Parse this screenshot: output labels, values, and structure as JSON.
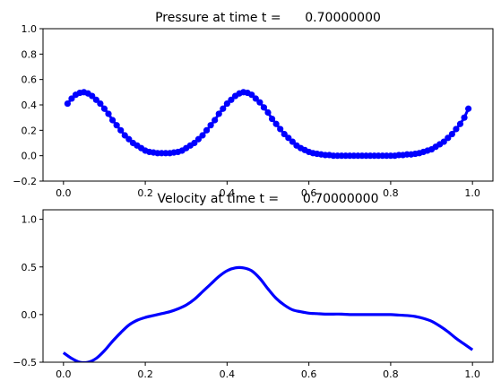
{
  "chart_data": [
    {
      "type": "scatter",
      "title": "Pressure at time t =      0.70000000",
      "xlabel": "",
      "ylabel": "",
      "xlim": [
        -0.05,
        1.05
      ],
      "ylim": [
        -0.2,
        1.0
      ],
      "xticks": [
        0.0,
        0.2,
        0.4,
        0.6,
        0.8,
        1.0
      ],
      "xtick_labels": [
        "0.0",
        "0.2",
        "0.4",
        "0.6",
        "0.8",
        "1.0"
      ],
      "yticks": [
        -0.2,
        0.0,
        0.2,
        0.4,
        0.6,
        0.8,
        1.0
      ],
      "ytick_labels": [
        "−0.2",
        "0.0",
        "0.2",
        "0.4",
        "0.6",
        "0.8",
        "1.0"
      ],
      "grid": false,
      "color": "#0000ff",
      "marker": "circle",
      "series": [
        {
          "x": [
            0.01,
            0.02,
            0.03,
            0.04,
            0.05,
            0.06,
            0.07,
            0.08,
            0.09,
            0.1,
            0.11,
            0.12,
            0.13,
            0.14,
            0.15,
            0.16,
            0.17,
            0.18,
            0.19,
            0.2,
            0.21,
            0.22,
            0.23,
            0.24,
            0.25,
            0.26,
            0.27,
            0.28,
            0.29,
            0.3,
            0.31,
            0.32,
            0.33,
            0.34,
            0.35,
            0.36,
            0.37,
            0.38,
            0.39,
            0.4,
            0.41,
            0.42,
            0.43,
            0.44,
            0.45,
            0.46,
            0.47,
            0.48,
            0.49,
            0.5,
            0.51,
            0.52,
            0.53,
            0.54,
            0.55,
            0.56,
            0.57,
            0.58,
            0.59,
            0.6,
            0.61,
            0.62,
            0.63,
            0.64,
            0.65,
            0.66,
            0.67,
            0.68,
            0.69,
            0.7,
            0.71,
            0.72,
            0.73,
            0.74,
            0.75,
            0.76,
            0.77,
            0.78,
            0.79,
            0.8,
            0.81,
            0.82,
            0.83,
            0.84,
            0.85,
            0.86,
            0.87,
            0.88,
            0.89,
            0.9,
            0.91,
            0.92,
            0.93,
            0.94,
            0.95,
            0.96,
            0.97,
            0.98,
            0.99
          ],
          "y": [
            0.41,
            0.45,
            0.48,
            0.495,
            0.5,
            0.49,
            0.47,
            0.44,
            0.41,
            0.37,
            0.33,
            0.28,
            0.24,
            0.2,
            0.16,
            0.13,
            0.1,
            0.08,
            0.06,
            0.04,
            0.03,
            0.025,
            0.02,
            0.02,
            0.02,
            0.02,
            0.025,
            0.03,
            0.04,
            0.06,
            0.08,
            0.1,
            0.13,
            0.16,
            0.2,
            0.24,
            0.28,
            0.33,
            0.37,
            0.41,
            0.44,
            0.47,
            0.49,
            0.5,
            0.495,
            0.48,
            0.45,
            0.42,
            0.38,
            0.34,
            0.29,
            0.25,
            0.21,
            0.17,
            0.14,
            0.11,
            0.08,
            0.06,
            0.045,
            0.03,
            0.02,
            0.015,
            0.01,
            0.005,
            0.005,
            0.0,
            0.0,
            0.0,
            0.0,
            0.0,
            0.0,
            0.0,
            0.0,
            0.0,
            0.0,
            0.0,
            0.0,
            0.0,
            0.0,
            0.0,
            0.0,
            0.005,
            0.005,
            0.01,
            0.01,
            0.015,
            0.02,
            0.03,
            0.04,
            0.05,
            0.07,
            0.09,
            0.11,
            0.14,
            0.17,
            0.21,
            0.25,
            0.3,
            0.37
          ]
        }
      ]
    },
    {
      "type": "line",
      "title": "Velocity at time t =      0.70000000",
      "xlabel": "",
      "ylabel": "",
      "xlim": [
        -0.05,
        1.05
      ],
      "ylim": [
        -0.5,
        1.1
      ],
      "xticks": [
        0.0,
        0.2,
        0.4,
        0.6,
        0.8,
        1.0
      ],
      "xtick_labels": [
        "0.0",
        "0.2",
        "0.4",
        "0.6",
        "0.8",
        "1.0"
      ],
      "yticks": [
        -0.5,
        0.0,
        0.5,
        1.0
      ],
      "ytick_labels": [
        "−0.5",
        "0.0",
        "0.5",
        "1.0"
      ],
      "grid": false,
      "color": "#0000ff",
      "series": [
        {
          "x": [
            0.0,
            0.02,
            0.04,
            0.06,
            0.08,
            0.1,
            0.12,
            0.14,
            0.16,
            0.18,
            0.2,
            0.22,
            0.24,
            0.26,
            0.28,
            0.3,
            0.32,
            0.34,
            0.36,
            0.38,
            0.4,
            0.42,
            0.44,
            0.46,
            0.48,
            0.5,
            0.52,
            0.54,
            0.56,
            0.58,
            0.6,
            0.62,
            0.64,
            0.66,
            0.68,
            0.7,
            0.72,
            0.74,
            0.76,
            0.78,
            0.8,
            0.82,
            0.84,
            0.86,
            0.88,
            0.9,
            0.92,
            0.94,
            0.96,
            0.98,
            1.0
          ],
          "y": [
            -0.4,
            -0.46,
            -0.5,
            -0.5,
            -0.46,
            -0.38,
            -0.28,
            -0.19,
            -0.11,
            -0.06,
            -0.03,
            -0.01,
            0.01,
            0.03,
            0.06,
            0.1,
            0.16,
            0.24,
            0.32,
            0.4,
            0.46,
            0.49,
            0.49,
            0.46,
            0.38,
            0.27,
            0.17,
            0.1,
            0.05,
            0.03,
            0.015,
            0.01,
            0.005,
            0.005,
            0.005,
            0.0,
            0.0,
            0.0,
            0.0,
            0.0,
            0.0,
            -0.005,
            -0.01,
            -0.02,
            -0.04,
            -0.07,
            -0.12,
            -0.18,
            -0.25,
            -0.31,
            -0.37
          ]
        }
      ]
    }
  ]
}
